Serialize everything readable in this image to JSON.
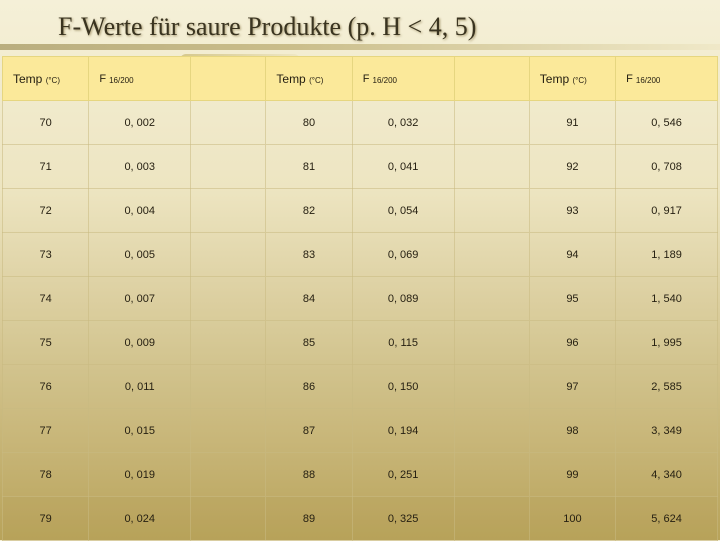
{
  "title": "F-Werte für saure Produkte (p. H < 4, 5)",
  "headers": {
    "temp_label": "Temp ",
    "temp_unit": "(°C)",
    "f_label": "F ",
    "f_sub": "16/200"
  },
  "columns": [
    {
      "temp": [
        "70",
        "71",
        "72",
        "73",
        "74",
        "75",
        "76",
        "77",
        "78",
        "79"
      ],
      "f": [
        "0, 002",
        "0, 003",
        "0, 004",
        "0, 005",
        "0, 007",
        "0, 009",
        "0, 011",
        "0, 015",
        "0, 019",
        "0, 024"
      ]
    },
    {
      "temp": [
        "80",
        "81",
        "82",
        "83",
        "84",
        "85",
        "86",
        "87",
        "88",
        "89"
      ],
      "f": [
        "0, 032",
        "0, 041",
        "0, 054",
        "0, 069",
        "0, 089",
        "0, 115",
        "0, 150",
        "0, 194",
        "0, 251",
        "0, 325"
      ]
    },
    {
      "temp": [
        "91",
        "92",
        "93",
        "94",
        "95",
        "96",
        "97",
        "98",
        "99",
        "100"
      ],
      "f": [
        "0, 546",
        "0, 708",
        "0, 917",
        "1, 189",
        "1, 540",
        "1, 995",
        "2, 585",
        "3, 349",
        "4, 340",
        "5, 624"
      ]
    }
  ],
  "style": {
    "rows": 10,
    "header_bg": "#fbe99a",
    "page_bg_top": "#f5f0d8",
    "page_bg_bottom": "#b8a35a",
    "border_color": "#c8b982",
    "title_color": "#3a3420",
    "title_fontsize": 26,
    "cell_fontsize": 11
  }
}
